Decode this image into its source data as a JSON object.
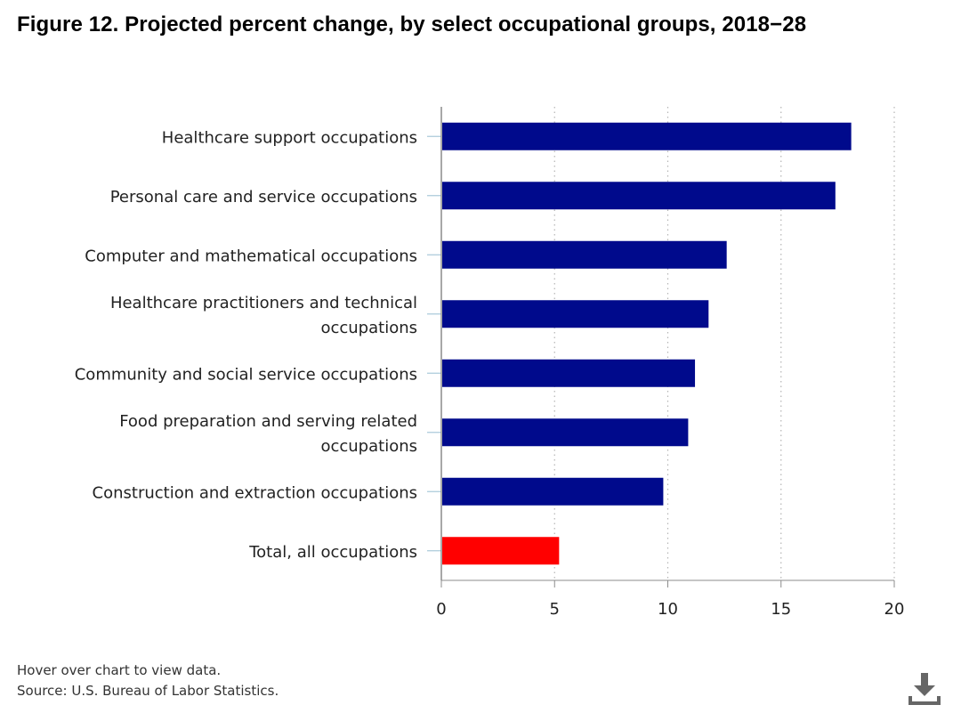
{
  "title": "Figure 12. Projected percent change, by select occupational groups, 2018−28",
  "footer": {
    "hint": "Hover over chart to view data.",
    "source": "Source: U.S. Bureau of Labor Statistics."
  },
  "download_icon": "download-icon",
  "colors": {
    "bar": "#000a8c",
    "highlight": "#ff0000",
    "axis": "#8c8c8c",
    "grid": "#b4b4b4",
    "tick": "#a8c8d8"
  },
  "chart_data": {
    "type": "bar",
    "orientation": "horizontal",
    "title": "Figure 12. Projected percent change, by select occupational groups, 2018−28",
    "xlabel": "",
    "ylabel": "",
    "xlim": [
      0,
      20
    ],
    "xticks": [
      "0",
      "5",
      "10",
      "15",
      "20"
    ],
    "grid": "vertical dotted",
    "categories": [
      [
        "Healthcare support occupations"
      ],
      [
        "Personal care and service occupations"
      ],
      [
        "Computer and mathematical occupations"
      ],
      [
        "Healthcare practitioners and technical",
        "occupations"
      ],
      [
        "Community and social service occupations"
      ],
      [
        "Food preparation and serving related",
        "occupations"
      ],
      [
        "Construction and extraction occupations"
      ],
      [
        "Total, all occupations"
      ]
    ],
    "values": [
      18.1,
      17.4,
      12.6,
      11.8,
      11.2,
      10.9,
      9.8,
      5.2
    ],
    "highlight_index": 7
  }
}
